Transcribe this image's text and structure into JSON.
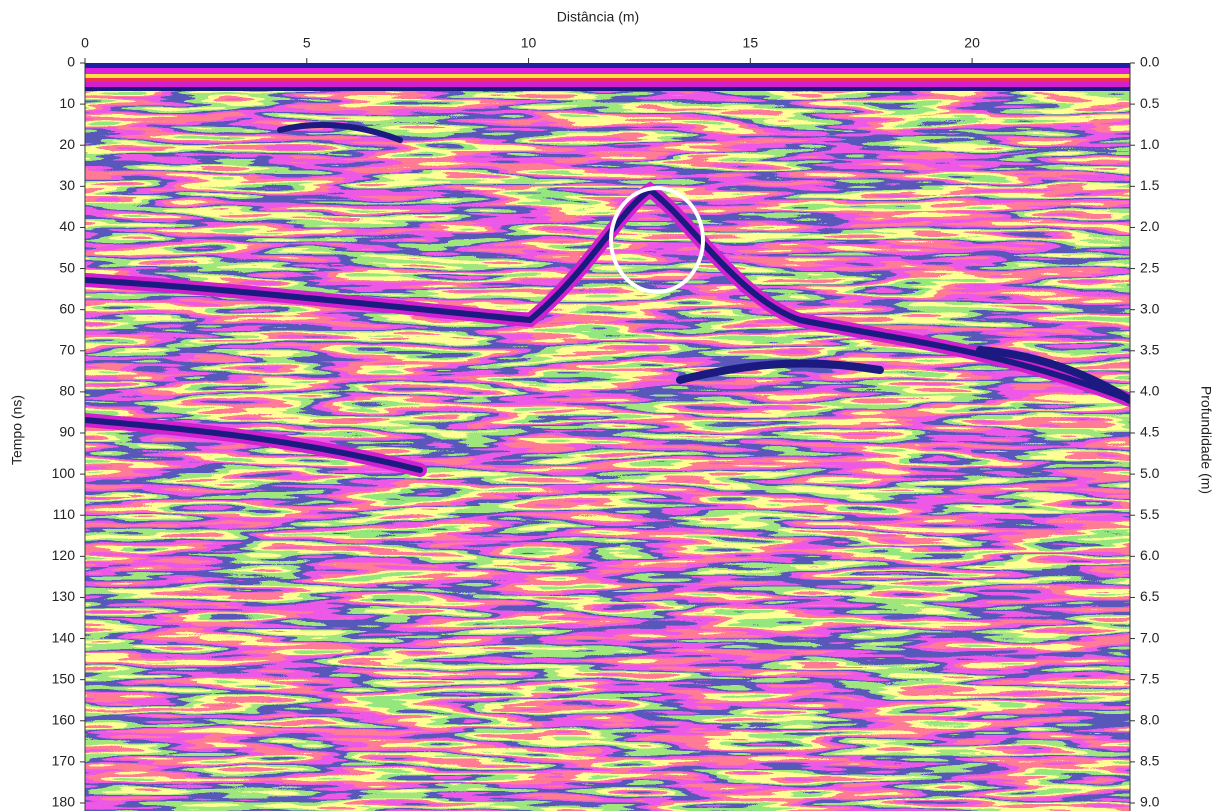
{
  "chart_data": {
    "type": "radargram",
    "x_label": "Distância (m)",
    "y_label": "Tempo (ns)",
    "y2_label": "Profundidade (m)",
    "xlim": [
      0,
      23.56
    ],
    "xticks": [
      0,
      5,
      10,
      15,
      20
    ],
    "ylim": [
      180,
      0
    ],
    "yticks": [
      0,
      10,
      20,
      30,
      40,
      50,
      60,
      70,
      80,
      90,
      100,
      110,
      120,
      130,
      140,
      150,
      160,
      170,
      180
    ],
    "y2lim": [
      9,
      0
    ],
    "y2ticks": [
      {
        "value": 0,
        "label": "0.0"
      },
      0.5,
      {
        "value": 1,
        "label": "1.0"
      },
      1.5,
      {
        "value": 2,
        "label": "2.0"
      },
      2.5,
      {
        "value": 3,
        "label": "3.0"
      },
      3.5,
      {
        "value": 4,
        "label": "4.0"
      },
      4.5,
      {
        "value": 5,
        "label": "5.0"
      },
      5.5,
      {
        "value": 6,
        "label": "6.0"
      },
      6.5,
      {
        "value": 7,
        "label": "7.0"
      },
      7.5,
      {
        "value": 8,
        "label": "8.0"
      },
      8.5,
      {
        "value": 9,
        "label": "9.0"
      }
    ]
  }
}
